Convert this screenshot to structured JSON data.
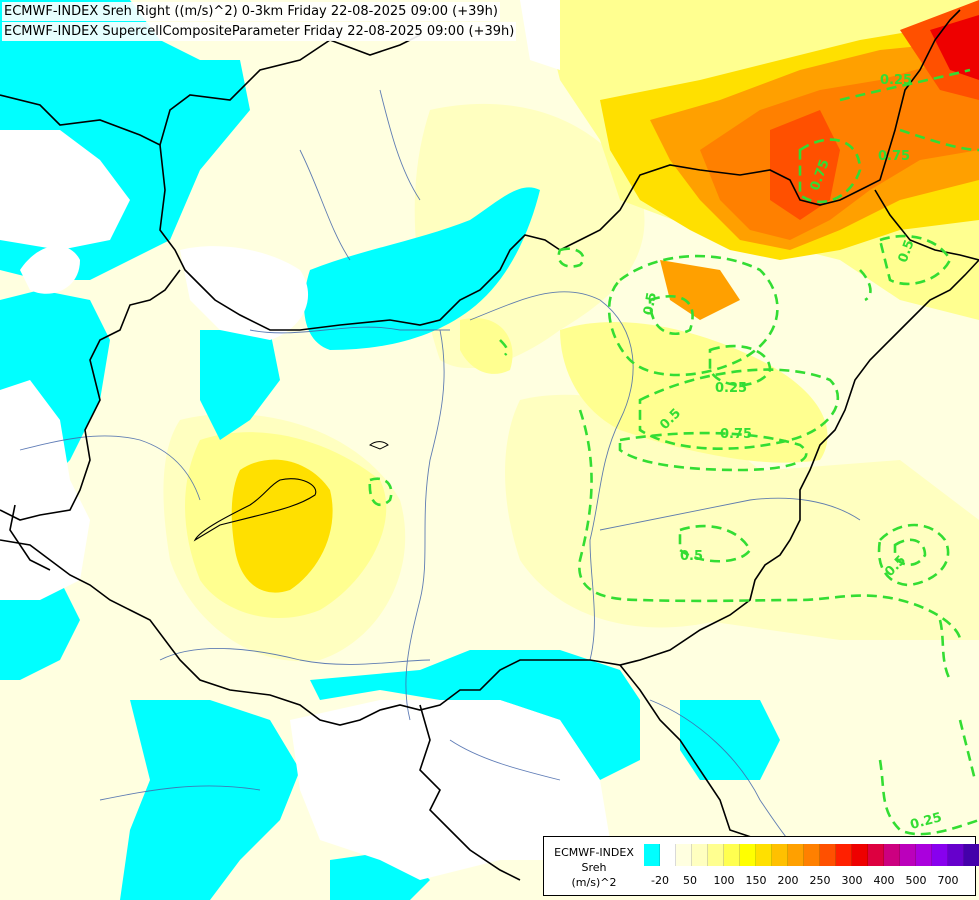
{
  "titles": {
    "line1": "ECMWF-INDEX Sreh Right ((m/s)^2) 0-3km Friday 22-08-2025 09:00 (+39h)",
    "line2": "ECMWF-INDEX SupercellCompositeParameter Friday 22-08-2025 09:00 (+39h)"
  },
  "legend": {
    "line1": "ECMWF-INDEX",
    "line2": "Sreh",
    "line3": "(m/s)^2",
    "colors": [
      "#00ffff",
      "#ffffff",
      "#ffffe0",
      "#ffffc0",
      "#ffff90",
      "#ffff50",
      "#ffff00",
      "#ffe000",
      "#ffc000",
      "#ffa000",
      "#ff8000",
      "#ff5000",
      "#ff2000",
      "#ee0000",
      "#dd0040",
      "#cc0080",
      "#bb00bb",
      "#aa00dd",
      "#8800ee",
      "#6600cc",
      "#4400aa",
      "#220099",
      "#000080"
    ],
    "ticks": [
      "-20",
      "50",
      "100",
      "150",
      "200",
      "250",
      "300",
      "400",
      "500",
      "700"
    ]
  },
  "contour_labels": [
    "0.25",
    "0.5",
    "0.75",
    "0.5",
    "0.25",
    "0.75",
    "0.5",
    "0.5",
    "0.5",
    "0.25",
    "0.75"
  ],
  "colors": {
    "cyan": "#00ffff",
    "contour": "#33dd33",
    "border": "#000000",
    "river": "#4466aa"
  }
}
